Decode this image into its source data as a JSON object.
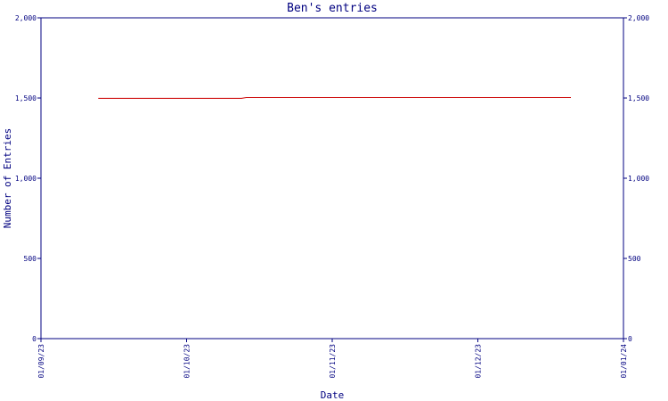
{
  "chart_data": {
    "type": "line",
    "title": "Ben's entries",
    "xlabel": "Date",
    "ylabel": "Number of Entries",
    "x_ticks": [
      "01/09/23",
      "01/10/23",
      "01/11/23",
      "01/12/23",
      "01/01/24"
    ],
    "y_ticks": [
      "0",
      "500",
      "1,000",
      "1,500",
      "2,000"
    ],
    "y_ticks_right": [
      "0",
      "500",
      "1,000",
      "1,500",
      "2,000"
    ],
    "ylim": [
      0,
      2000
    ],
    "xlim": [
      "2023-09-01",
      "2024-01-01"
    ],
    "grid": false,
    "colors": {
      "line": "#cc0000",
      "axis": "#000080",
      "text": "#000080"
    },
    "series": [
      {
        "x": [
          "2023-09-13",
          "2023-10-13",
          "2023-10-14",
          "2023-12-21"
        ],
        "values": [
          1498,
          1498,
          1503,
          1503
        ]
      }
    ]
  }
}
